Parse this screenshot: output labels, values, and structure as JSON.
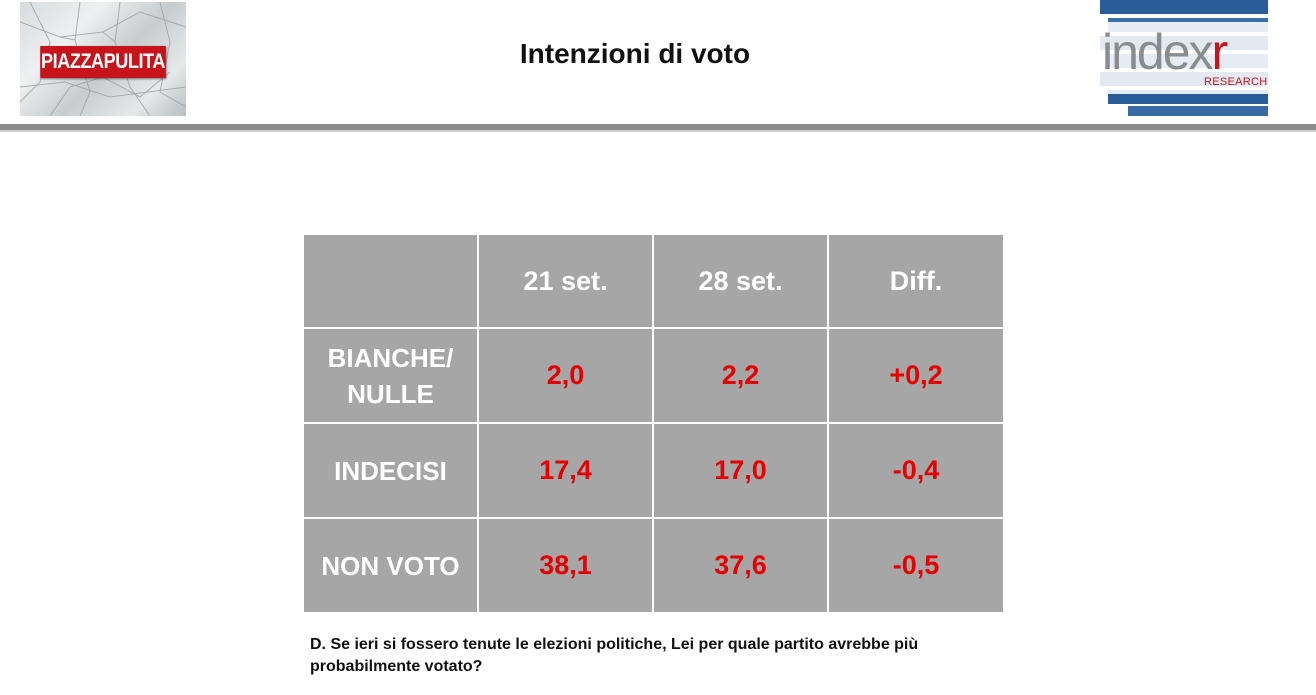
{
  "header": {
    "title": "Intenzioni di voto",
    "left_logo_text": "PIAZZAPULITA",
    "right_logo_word": "index",
    "right_logo_r": "r",
    "right_logo_sub": "RESEARCH",
    "brand_red": "#c7141b",
    "brand_blue": "#1c4f8c"
  },
  "table": {
    "headers": [
      "",
      "21 set.",
      "28 set.",
      "Diff."
    ],
    "rows": [
      {
        "label_lines": [
          "BIANCHE/",
          "NULLE"
        ],
        "values": [
          "2,0",
          "2,2",
          "+0,2"
        ]
      },
      {
        "label_lines": [
          "INDECISI"
        ],
        "values": [
          "17,4",
          "17,0",
          "-0,4"
        ]
      },
      {
        "label_lines": [
          "NON VOTO"
        ],
        "values": [
          "38,1",
          "37,6",
          "-0,5"
        ]
      }
    ],
    "cell_bg": "#a6a6a6",
    "value_color": "#e60000"
  },
  "footer": {
    "question": "D. Se ieri si fossero tenute le elezioni politiche, Lei per quale partito avrebbe più probabilmente votato?"
  }
}
